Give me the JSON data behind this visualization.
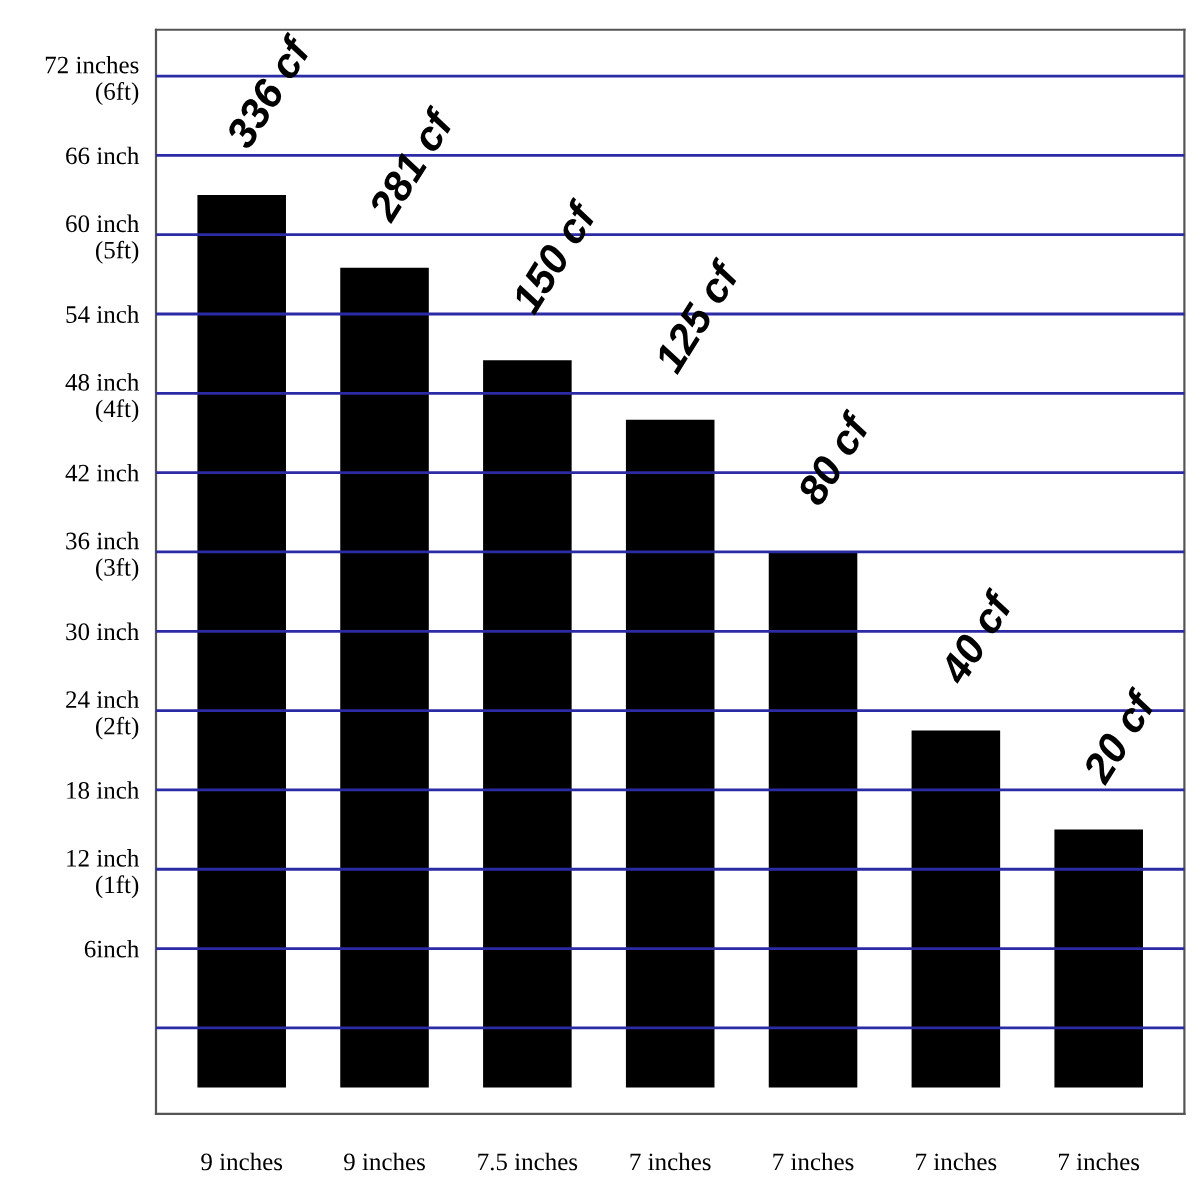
{
  "chart_data": {
    "type": "bar",
    "categories": [
      "9 inches",
      "9 inches",
      "7.5 inches",
      "7 inches",
      "7 inches",
      "7 inches",
      "7 inches"
    ],
    "values": [
      67.5,
      62,
      55,
      50.5,
      40.5,
      27,
      19.5
    ],
    "base": [
      -4.5,
      -4.5,
      -4.5,
      -4.5,
      -4.5,
      -4.5,
      -4.5
    ],
    "color": "#000000",
    "annotations": [
      "336 cf",
      "281 cf",
      "150 cf",
      "125 cf",
      "80 cf",
      "40 cf",
      "20 cf"
    ],
    "ylim": [
      -6.5,
      75.5
    ],
    "yticks": [
      {
        "value": 0,
        "label": null
      },
      {
        "value": 6,
        "label": "6inch"
      },
      {
        "value": 12,
        "label": "12 inch\n(1ft)"
      },
      {
        "value": 18,
        "label": "18 inch"
      },
      {
        "value": 24,
        "label": "24 inch\n(2ft)"
      },
      {
        "value": 30,
        "label": "30 inch"
      },
      {
        "value": 36,
        "label": "36 inch\n(3ft)"
      },
      {
        "value": 42,
        "label": "42 inch"
      },
      {
        "value": 48,
        "label": "48 inch\n(4ft)"
      },
      {
        "value": 54,
        "label": "54 inch"
      },
      {
        "value": 60,
        "label": "60 inch\n(5ft)"
      },
      {
        "value": 66,
        "label": "66 inch"
      },
      {
        "value": 72,
        "label": "72 inches\n(6ft)"
      }
    ],
    "grid": "y"
  }
}
